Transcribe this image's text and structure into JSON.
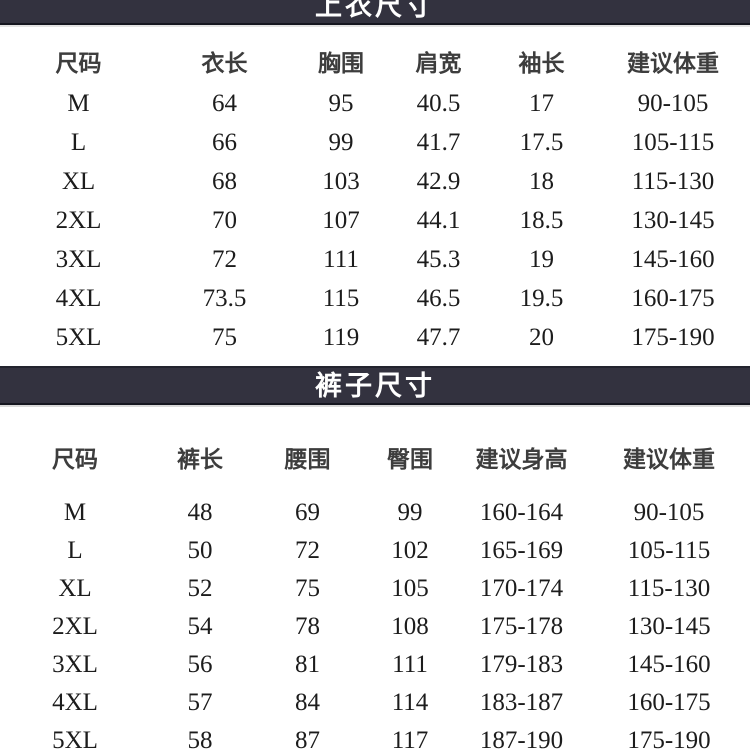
{
  "colors": {
    "bar_background": "#33323f",
    "bar_text": "#ffffff",
    "header_text": "#3d3d3d",
    "data_text": "#1c1c1c",
    "page_background": "#ffffff"
  },
  "shirt_table": {
    "title": "上衣尺寸",
    "headers": [
      "尺码",
      "衣长",
      "胸围",
      "肩宽",
      "袖长",
      "建议体重"
    ],
    "rows": [
      [
        "M",
        "64",
        "95",
        "40.5",
        "17",
        "90-105"
      ],
      [
        "L",
        "66",
        "99",
        "41.7",
        "17.5",
        "105-115"
      ],
      [
        "XL",
        "68",
        "103",
        "42.9",
        "18",
        "115-130"
      ],
      [
        "2XL",
        "70",
        "107",
        "44.1",
        "18.5",
        "130-145"
      ],
      [
        "3XL",
        "72",
        "111",
        "45.3",
        "19",
        "145-160"
      ],
      [
        "4XL",
        "73.5",
        "115",
        "46.5",
        "19.5",
        "160-175"
      ],
      [
        "5XL",
        "75",
        "119",
        "47.7",
        "20",
        "175-190"
      ]
    ]
  },
  "pants_table": {
    "title": "裤子尺寸",
    "headers": [
      "尺码",
      "裤长",
      "腰围",
      "臀围",
      "建议身高",
      "建议体重"
    ],
    "rows": [
      [
        "M",
        "48",
        "69",
        "99",
        "160-164",
        "90-105"
      ],
      [
        "L",
        "50",
        "72",
        "102",
        "165-169",
        "105-115"
      ],
      [
        "XL",
        "52",
        "75",
        "105",
        "170-174",
        "115-130"
      ],
      [
        "2XL",
        "54",
        "78",
        "108",
        "175-178",
        "130-145"
      ],
      [
        "3XL",
        "56",
        "81",
        "111",
        "179-183",
        "145-160"
      ],
      [
        "4XL",
        "57",
        "84",
        "114",
        "183-187",
        "160-175"
      ],
      [
        "5XL",
        "58",
        "87",
        "117",
        "187-190",
        "175-190"
      ]
    ]
  }
}
